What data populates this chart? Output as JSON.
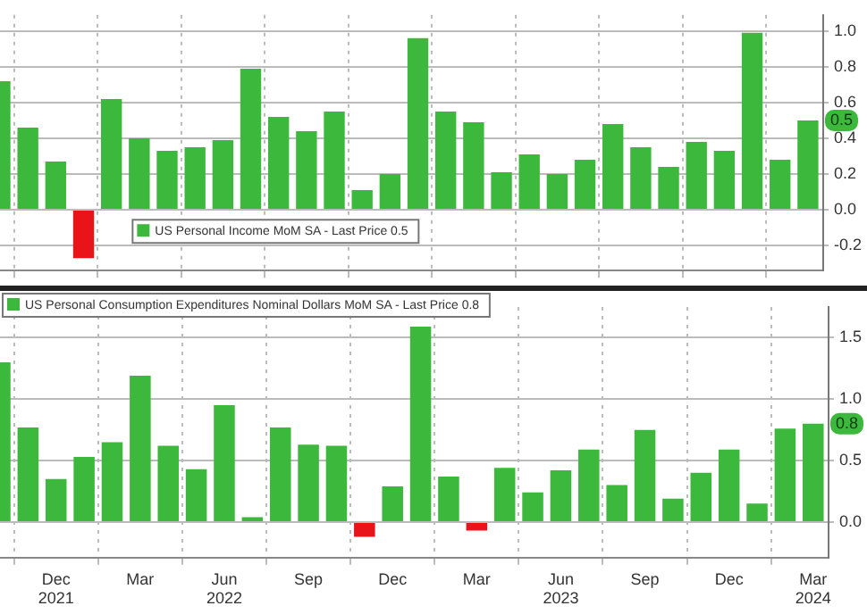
{
  "chart_data": [
    {
      "type": "bar",
      "x": [
        "2021-10",
        "2021-11",
        "2021-12",
        "2022-01",
        "2022-02",
        "2022-03",
        "2022-04",
        "2022-05",
        "2022-06",
        "2022-07",
        "2022-08",
        "2022-09",
        "2022-10",
        "2022-11",
        "2022-12",
        "2023-01",
        "2023-02",
        "2023-03",
        "2023-04",
        "2023-05",
        "2023-06",
        "2023-07",
        "2023-08",
        "2023-09",
        "2023-10",
        "2023-11",
        "2023-12",
        "2024-01",
        "2024-02",
        "2024-03"
      ],
      "series": [
        {
          "name": "US Personal Income MoM SA - Last Price 0.5",
          "color": "#3cb93c",
          "colors": [
            "#3cb93c",
            "#3cb93c",
            "#3cb93c",
            "#e8141a",
            "#3cb93c",
            "#3cb93c",
            "#3cb93c",
            "#3cb93c",
            "#3cb93c",
            "#3cb93c",
            "#3cb93c",
            "#3cb93c",
            "#3cb93c",
            "#3cb93c",
            "#3cb93c",
            "#3cb93c",
            "#3cb93c",
            "#3cb93c",
            "#3cb93c",
            "#3cb93c",
            "#3cb93c",
            "#3cb93c",
            "#3cb93c",
            "#3cb93c",
            "#3cb93c",
            "#3cb93c",
            "#3cb93c",
            "#3cb93c",
            "#3cb93c",
            "#3cb93c"
          ],
          "values": [
            0.72,
            0.46,
            0.27,
            -0.27,
            0.62,
            0.4,
            0.33,
            0.35,
            0.39,
            0.79,
            0.52,
            0.44,
            0.55,
            0.11,
            0.2,
            0.96,
            0.55,
            0.49,
            0.21,
            0.31,
            0.2,
            0.28,
            0.48,
            0.35,
            0.24,
            0.38,
            0.33,
            0.99,
            0.28,
            0.5
          ]
        }
      ],
      "xlim": [
        "2021-10",
        "2024-03-18"
      ],
      "xticks": [
        {
          "value": "2021-12",
          "label": null
        },
        {
          "value": "2022-03",
          "label": null
        },
        {
          "value": "2022-06",
          "label": null
        },
        {
          "value": "2022-09",
          "label": null
        },
        {
          "value": "2022-12",
          "label": null
        },
        {
          "value": "2023-03",
          "label": null
        },
        {
          "value": "2023-06",
          "label": null
        },
        {
          "value": "2023-09",
          "label": null
        },
        {
          "value": "2023-12",
          "label": null
        },
        {
          "value": "2024-03",
          "label": null
        }
      ],
      "ylim": [
        -0.34,
        1.09
      ],
      "yticks": [
        {
          "value": -0.2,
          "label": "-0.2"
        },
        {
          "value": 0,
          "label": "0.0"
        },
        {
          "value": 0.2,
          "label": "0.2"
        },
        {
          "value": 0.4,
          "label": "0.4"
        },
        {
          "value": 0.6,
          "label": "0.6"
        },
        {
          "value": 0.8,
          "label": "0.8"
        },
        {
          "value": 1,
          "label": "1.0"
        }
      ],
      "tick_labels": "y",
      "grid": true,
      "legend": "bottom",
      "annotations": [
        "0.5"
      ]
    },
    {
      "type": "bar",
      "x": [
        "2021-10",
        "2021-11",
        "2021-12",
        "2022-01",
        "2022-02",
        "2022-03",
        "2022-04",
        "2022-05",
        "2022-06",
        "2022-07",
        "2022-08",
        "2022-09",
        "2022-10",
        "2022-11",
        "2022-12",
        "2023-01",
        "2023-02",
        "2023-03",
        "2023-04",
        "2023-05",
        "2023-06",
        "2023-07",
        "2023-08",
        "2023-09",
        "2023-10",
        "2023-11",
        "2023-12",
        "2024-01",
        "2024-02",
        "2024-03"
      ],
      "series": [
        {
          "name": "US Personal Consumption Expenditures Nominal Dollars MoM SA - Last Price 0.8",
          "color": "#3cb93c",
          "colors": [
            "#3cb93c",
            "#3cb93c",
            "#3cb93c",
            "#3cb93c",
            "#3cb93c",
            "#3cb93c",
            "#3cb93c",
            "#3cb93c",
            "#3cb93c",
            "#3cb93c",
            "#3cb93c",
            "#3cb93c",
            "#3cb93c",
            "#e8141a",
            "#3cb93c",
            "#3cb93c",
            "#3cb93c",
            "#e8141a",
            "#3cb93c",
            "#3cb93c",
            "#3cb93c",
            "#3cb93c",
            "#3cb93c",
            "#3cb93c",
            "#3cb93c",
            "#3cb93c",
            "#3cb93c",
            "#3cb93c",
            "#3cb93c",
            "#3cb93c"
          ],
          "values": [
            1.3,
            0.77,
            0.35,
            0.53,
            0.65,
            1.19,
            0.62,
            0.43,
            0.95,
            0.04,
            0.77,
            0.63,
            0.62,
            -0.12,
            0.29,
            1.59,
            0.37,
            -0.07,
            0.44,
            0.24,
            0.42,
            0.59,
            0.3,
            0.75,
            0.19,
            0.4,
            0.59,
            0.15,
            0.76,
            0.8
          ]
        }
      ],
      "xlim": [
        "2021-10",
        "2024-03-18"
      ],
      "xticks": [
        {
          "value": "2021-12",
          "label": "Dec\n2021"
        },
        {
          "value": "2022-03",
          "label": "Mar"
        },
        {
          "value": "2022-06",
          "label": "Jun\n2022"
        },
        {
          "value": "2022-09",
          "label": "Sep"
        },
        {
          "value": "2022-12",
          "label": "Dec"
        },
        {
          "value": "2023-03",
          "label": "Mar"
        },
        {
          "value": "2023-06",
          "label": "Jun\n2023"
        },
        {
          "value": "2023-09",
          "label": "Sep"
        },
        {
          "value": "2023-12",
          "label": "Dec"
        },
        {
          "value": "2024-03",
          "label": "Mar\n2024"
        }
      ],
      "ylim": [
        -0.29,
        1.75
      ],
      "yticks": [
        {
          "value": 0,
          "label": "0.0"
        },
        {
          "value": 0.5,
          "label": "0.5"
        },
        {
          "value": 1,
          "label": "1.0"
        },
        {
          "value": 1.5,
          "label": "1.5"
        }
      ],
      "grid": true,
      "legend": "top left",
      "annotations": [
        "0.8"
      ]
    }
  ]
}
